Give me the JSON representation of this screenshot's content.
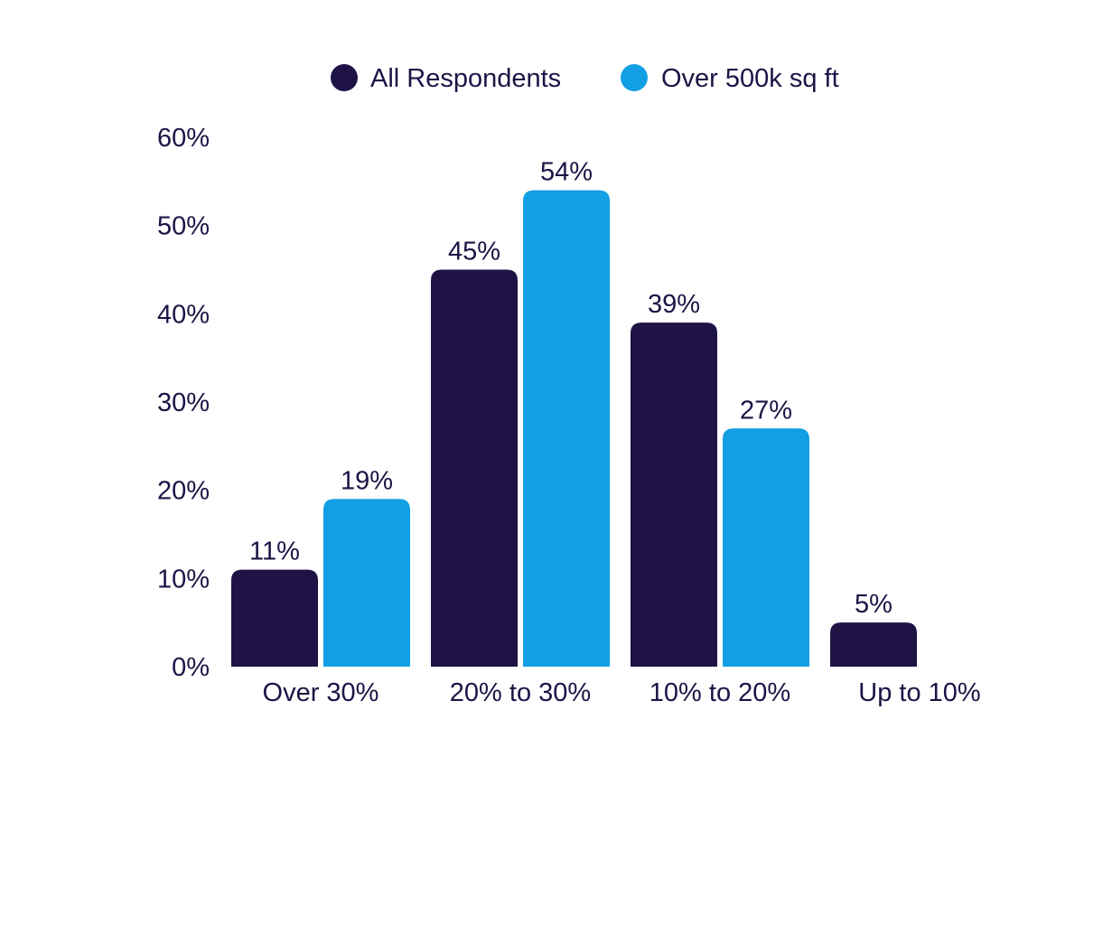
{
  "chart_data": {
    "type": "bar",
    "categories": [
      "Over 30%",
      "20% to 30%",
      "10% to 20%",
      "Up to 10%"
    ],
    "series": [
      {
        "name": "All Respondents",
        "color": "#1f1346",
        "values": [
          11,
          45,
          39,
          5
        ]
      },
      {
        "name": "Over 500k sq ft",
        "color": "#139fe3",
        "values": [
          19,
          54,
          27,
          null
        ]
      }
    ],
    "value_labels": [
      [
        "11%",
        "45%",
        "39%",
        "5%"
      ],
      [
        "19%",
        "54%",
        "27%",
        ""
      ]
    ],
    "y_ticks": [
      "0%",
      "10%",
      "20%",
      "30%",
      "40%",
      "50%",
      "60%"
    ],
    "ylim": [
      0,
      60
    ],
    "grid": false,
    "legend_position": "top-center"
  }
}
